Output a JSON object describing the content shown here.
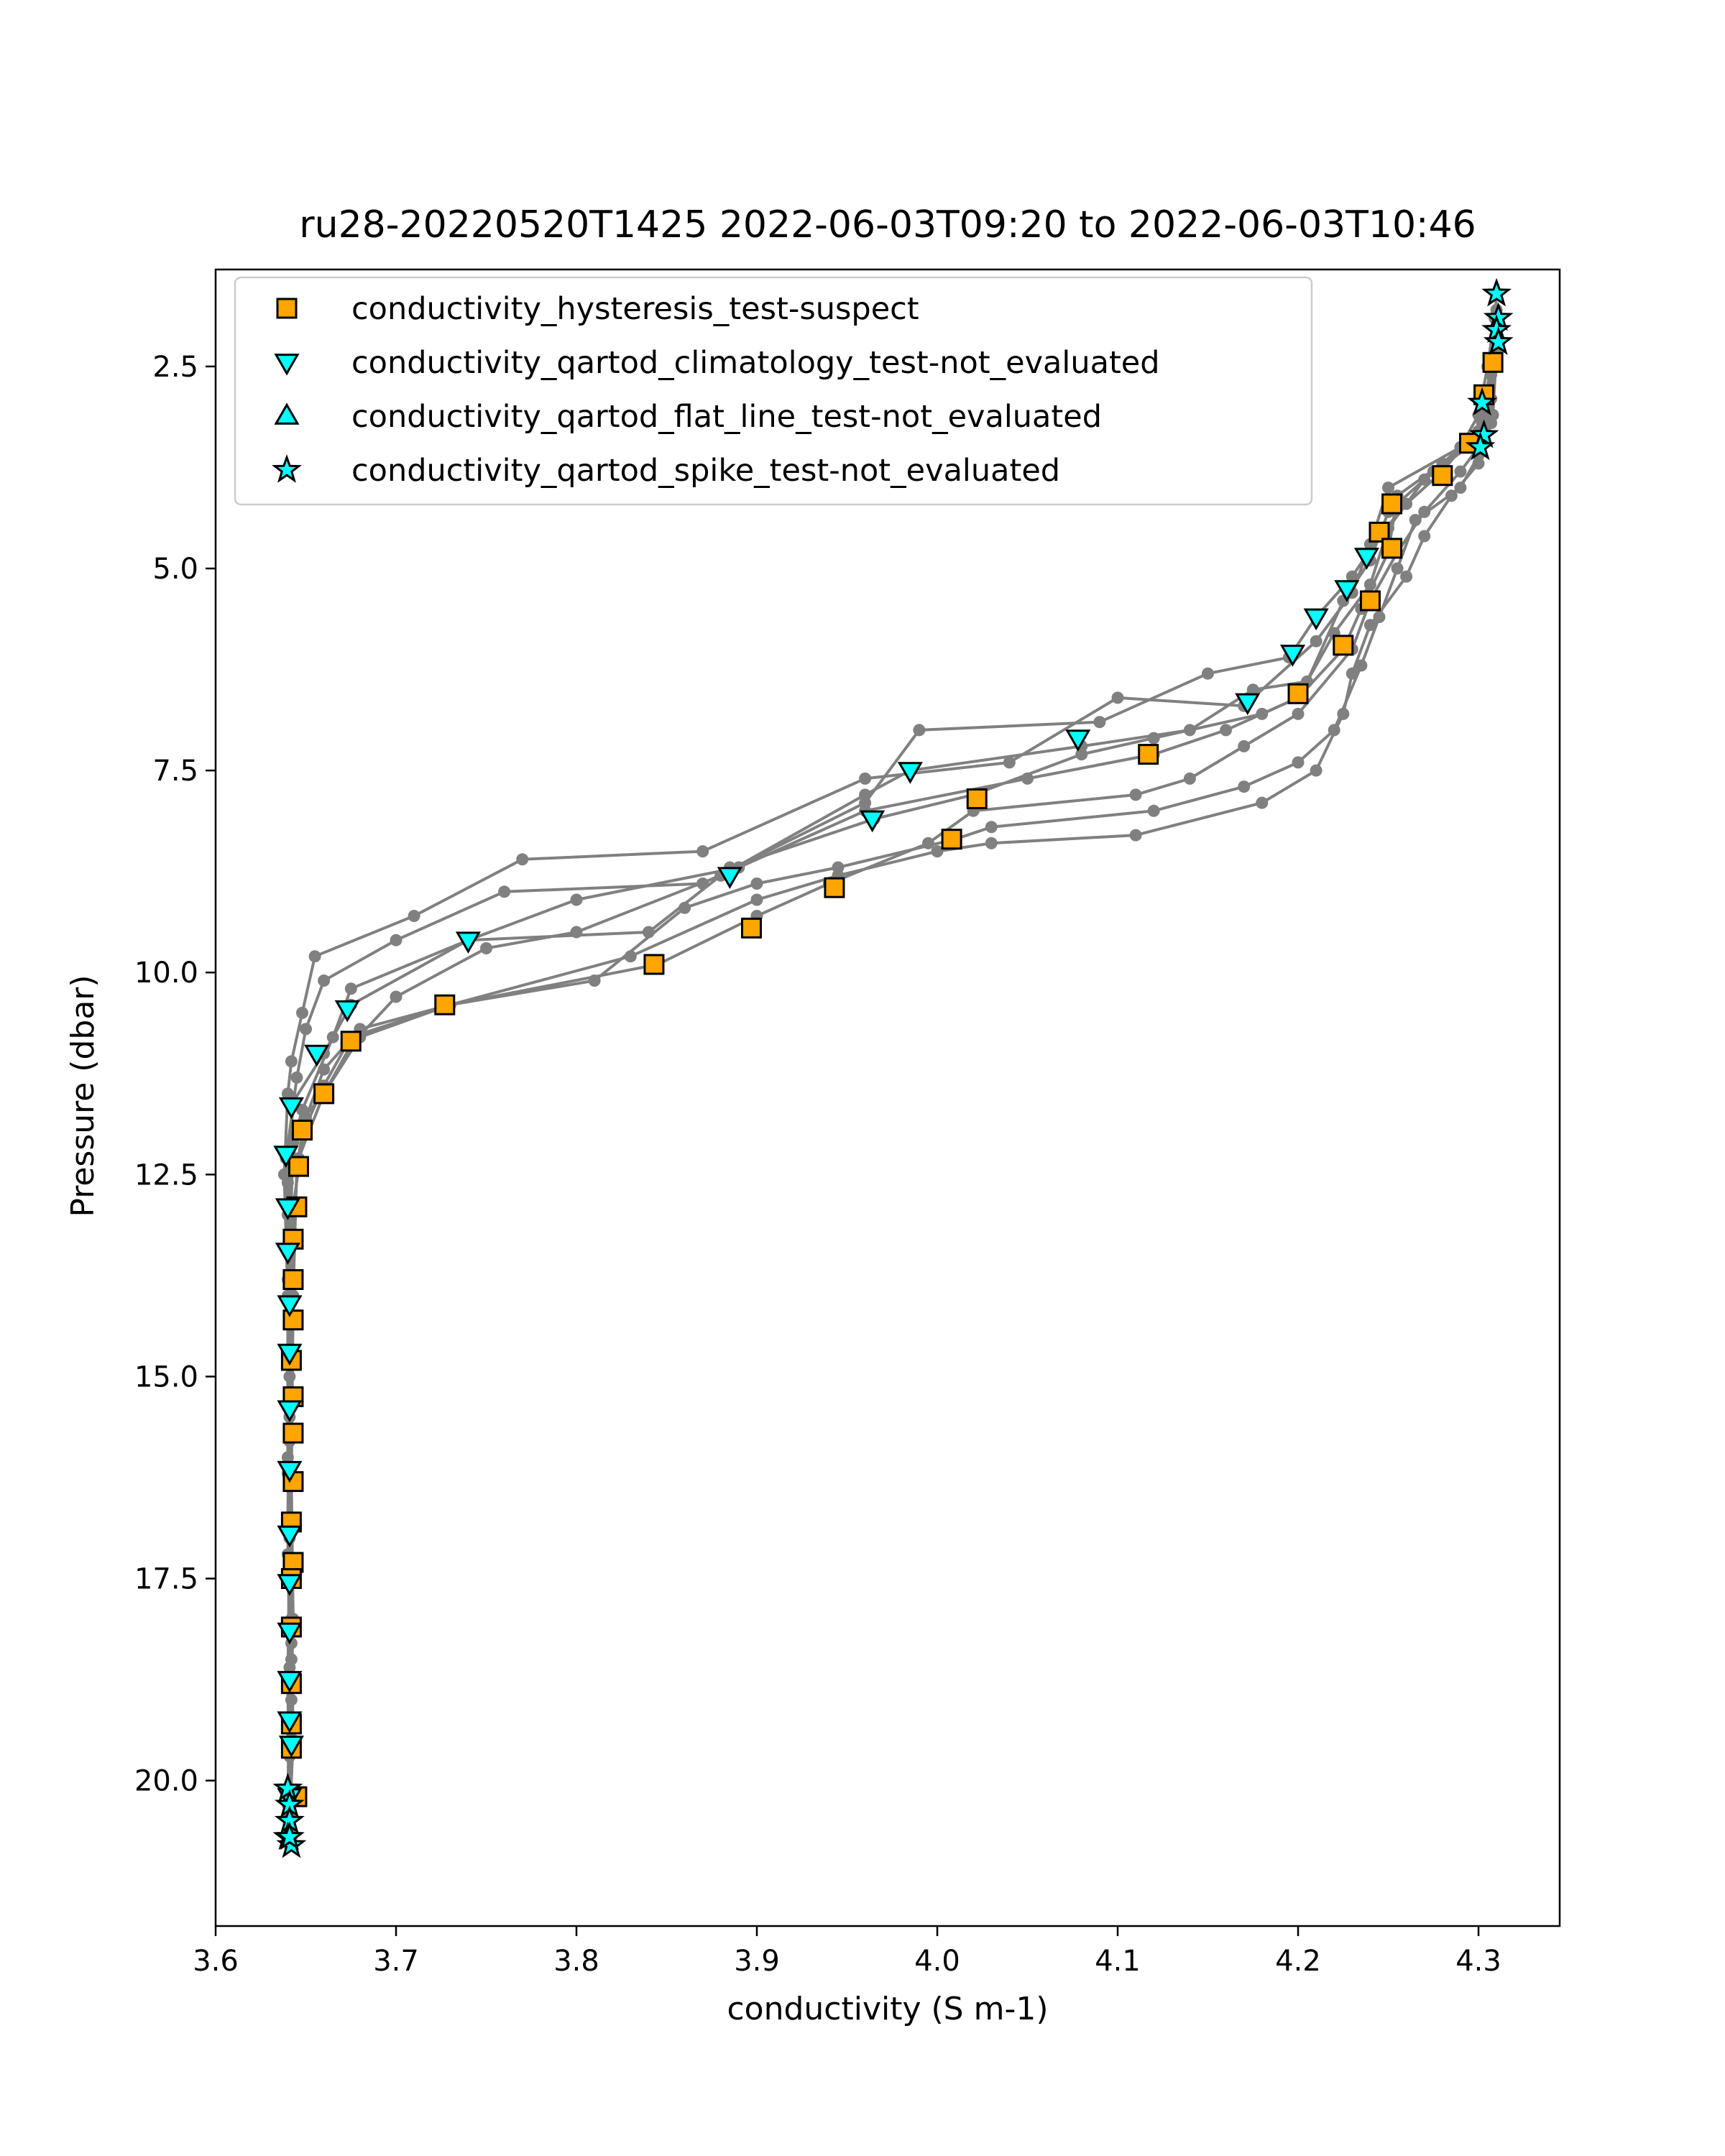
{
  "chart_data": {
    "type": "line",
    "title": "ru28-20220520T1425 2022-06-03T09:20 to 2022-06-03T10:46",
    "xlabel": "conductivity (S m-1)",
    "ylabel": "Pressure (dbar)",
    "xlim": [
      3.6,
      4.345
    ],
    "ylim": [
      21.8,
      1.3
    ],
    "y_inverted": true,
    "x_ticks": [
      3.6,
      3.7,
      3.8,
      3.9,
      4.0,
      4.1,
      4.2,
      4.3
    ],
    "x_tick_labels": [
      "3.6",
      "3.7",
      "3.8",
      "3.9",
      "4.0",
      "4.1",
      "4.2",
      "4.3"
    ],
    "y_ticks": [
      2.5,
      5.0,
      7.5,
      10.0,
      12.5,
      15.0,
      17.5,
      20.0
    ],
    "y_tick_labels": [
      "2.5",
      "5.0",
      "7.5",
      "10.0",
      "12.5",
      "15.0",
      "17.5",
      "20.0"
    ],
    "grid": false,
    "legend_position": "top-left",
    "colors": {
      "profile_line": "#808080",
      "orange": "#ffa500",
      "cyan": "#00ffff",
      "edge": "#000000"
    },
    "profiles": [
      {
        "points": [
          [
            4.31,
            1.6
          ],
          [
            4.308,
            2.4
          ],
          [
            4.3,
            3.3
          ],
          [
            4.29,
            3.5
          ],
          [
            4.25,
            4.0
          ],
          [
            4.24,
            4.7
          ],
          [
            4.23,
            5.3
          ],
          [
            4.21,
            5.9
          ],
          [
            4.17,
            6.7
          ],
          [
            4.1,
            6.6
          ],
          [
            4.04,
            7.4
          ],
          [
            3.96,
            7.6
          ],
          [
            3.87,
            8.5
          ],
          [
            3.77,
            8.6
          ],
          [
            3.71,
            9.3
          ],
          [
            3.655,
            9.8
          ],
          [
            3.648,
            10.5
          ],
          [
            3.642,
            11.1
          ],
          [
            3.64,
            11.5
          ],
          [
            3.638,
            12.5
          ],
          [
            3.64,
            14.0
          ],
          [
            3.64,
            16.0
          ],
          [
            3.642,
            18.0
          ],
          [
            3.643,
            19.5
          ],
          [
            3.641,
            20.5
          ]
        ]
      },
      {
        "points": [
          [
            4.31,
            1.8
          ],
          [
            4.307,
            2.6
          ],
          [
            4.302,
            3.2
          ],
          [
            4.28,
            3.8
          ],
          [
            4.26,
            4.2
          ],
          [
            4.245,
            4.6
          ],
          [
            4.23,
            5.1
          ],
          [
            4.21,
            5.6
          ],
          [
            4.195,
            6.1
          ],
          [
            4.15,
            6.3
          ],
          [
            4.09,
            6.9
          ],
          [
            3.99,
            7.0
          ],
          [
            3.96,
            7.9
          ],
          [
            3.87,
            8.9
          ],
          [
            3.76,
            9.0
          ],
          [
            3.7,
            9.6
          ],
          [
            3.66,
            10.1
          ],
          [
            3.65,
            10.7
          ],
          [
            3.645,
            11.3
          ],
          [
            3.639,
            12.3
          ],
          [
            3.64,
            13.8
          ],
          [
            3.641,
            15.5
          ],
          [
            3.64,
            17.2
          ],
          [
            3.642,
            19.0
          ],
          [
            3.64,
            20.3
          ]
        ]
      },
      {
        "points": [
          [
            4.309,
            1.9
          ],
          [
            4.305,
            2.5
          ],
          [
            4.3,
            3.1
          ],
          [
            4.29,
            3.5
          ],
          [
            4.275,
            3.8
          ],
          [
            4.25,
            4.3
          ],
          [
            4.24,
            4.9
          ],
          [
            4.225,
            5.4
          ],
          [
            4.205,
            6.4
          ],
          [
            4.175,
            6.5
          ],
          [
            4.14,
            7.0
          ],
          [
            4.08,
            7.2
          ],
          [
            3.985,
            7.5
          ],
          [
            3.96,
            7.8
          ],
          [
            3.88,
            8.8
          ],
          [
            3.84,
            9.5
          ],
          [
            3.74,
            9.6
          ],
          [
            3.675,
            10.4
          ],
          [
            3.66,
            11.0
          ],
          [
            3.643,
            11.6
          ],
          [
            3.64,
            12.6
          ],
          [
            3.641,
            14.3
          ],
          [
            3.64,
            16.2
          ],
          [
            3.642,
            18.3
          ],
          [
            3.64,
            20.1
          ]
        ]
      },
      {
        "points": [
          [
            4.31,
            2.0
          ],
          [
            4.306,
            2.8
          ],
          [
            4.3,
            3.4
          ],
          [
            4.27,
            3.9
          ],
          [
            4.25,
            4.5
          ],
          [
            4.24,
            5.2
          ],
          [
            4.22,
            5.8
          ],
          [
            4.2,
            6.6
          ],
          [
            4.16,
            7.0
          ],
          [
            4.12,
            7.3
          ],
          [
            4.05,
            7.6
          ],
          [
            3.96,
            8.0
          ],
          [
            3.89,
            8.7
          ],
          [
            3.8,
            9.1
          ],
          [
            3.74,
            9.6
          ],
          [
            3.675,
            10.2
          ],
          [
            3.665,
            10.8
          ],
          [
            3.648,
            11.7
          ],
          [
            3.643,
            12.1
          ],
          [
            3.641,
            13.5
          ],
          [
            3.642,
            15.2
          ],
          [
            3.641,
            17.0
          ],
          [
            3.64,
            18.8
          ],
          [
            3.641,
            20.4
          ]
        ]
      },
      {
        "points": [
          [
            4.31,
            2.1
          ],
          [
            4.307,
            2.9
          ],
          [
            4.303,
            3.3
          ],
          [
            4.28,
            3.7
          ],
          [
            4.255,
            4.1
          ],
          [
            4.25,
            4.8
          ],
          [
            4.235,
            5.5
          ],
          [
            4.225,
            6.0
          ],
          [
            4.2,
            6.6
          ],
          [
            4.18,
            6.8
          ],
          [
            4.12,
            7.1
          ],
          [
            4.08,
            7.3
          ],
          [
            4.02,
            7.8
          ],
          [
            3.965,
            8.1
          ],
          [
            3.885,
            8.7
          ],
          [
            3.88,
            8.8
          ],
          [
            3.8,
            9.5
          ],
          [
            3.75,
            9.7
          ],
          [
            3.7,
            10.3
          ],
          [
            3.675,
            10.9
          ],
          [
            3.66,
            11.5
          ],
          [
            3.645,
            11.9
          ],
          [
            3.64,
            13.0
          ],
          [
            3.641,
            14.8
          ],
          [
            3.64,
            16.8
          ],
          [
            3.641,
            18.6
          ],
          [
            3.642,
            20.2
          ]
        ]
      },
      {
        "points": [
          [
            4.31,
            2.2
          ],
          [
            4.305,
            3.0
          ],
          [
            4.3,
            3.5
          ],
          [
            4.29,
            3.8
          ],
          [
            4.27,
            4.3
          ],
          [
            4.255,
            4.8
          ],
          [
            4.24,
            5.4
          ],
          [
            4.23,
            6.0
          ],
          [
            4.2,
            6.8
          ],
          [
            4.17,
            7.2
          ],
          [
            4.14,
            7.6
          ],
          [
            4.11,
            7.8
          ],
          [
            4.02,
            8.0
          ],
          [
            3.995,
            8.4
          ],
          [
            3.94,
            8.9
          ],
          [
            3.9,
            9.3
          ],
          [
            3.845,
            9.9
          ],
          [
            3.73,
            10.4
          ],
          [
            3.675,
            10.8
          ],
          [
            3.66,
            11.4
          ],
          [
            3.648,
            12.0
          ],
          [
            3.645,
            12.4
          ],
          [
            3.643,
            14.0
          ],
          [
            3.642,
            16.3
          ],
          [
            3.643,
            18.0
          ],
          [
            3.641,
            19.7
          ],
          [
            3.642,
            20.7
          ]
        ]
      },
      {
        "points": [
          [
            4.31,
            2.3
          ],
          [
            4.308,
            3.1
          ],
          [
            4.3,
            3.6
          ],
          [
            4.29,
            4.0
          ],
          [
            4.265,
            4.4
          ],
          [
            4.255,
            5.0
          ],
          [
            4.245,
            5.6
          ],
          [
            4.235,
            6.2
          ],
          [
            4.22,
            7.0
          ],
          [
            4.2,
            7.4
          ],
          [
            4.17,
            7.7
          ],
          [
            4.12,
            8.0
          ],
          [
            4.03,
            8.2
          ],
          [
            4.01,
            8.35
          ],
          [
            3.945,
            8.7
          ],
          [
            3.9,
            8.9
          ],
          [
            3.86,
            9.2
          ],
          [
            3.81,
            10.1
          ],
          [
            3.73,
            10.4
          ],
          [
            3.68,
            10.7
          ],
          [
            3.66,
            11.2
          ],
          [
            3.65,
            11.8
          ],
          [
            3.643,
            12.9
          ],
          [
            3.641,
            15.0
          ],
          [
            3.642,
            17.5
          ],
          [
            3.64,
            19.3
          ],
          [
            3.641,
            20.8
          ]
        ]
      },
      {
        "points": [
          [
            4.31,
            2.4
          ],
          [
            4.307,
            3.2
          ],
          [
            4.3,
            3.7
          ],
          [
            4.285,
            4.1
          ],
          [
            4.27,
            4.6
          ],
          [
            4.26,
            5.1
          ],
          [
            4.24,
            5.7
          ],
          [
            4.23,
            6.3
          ],
          [
            4.225,
            6.8
          ],
          [
            4.21,
            7.5
          ],
          [
            4.18,
            7.9
          ],
          [
            4.11,
            8.3
          ],
          [
            4.03,
            8.4
          ],
          [
            4.0,
            8.5
          ],
          [
            3.945,
            8.8
          ],
          [
            3.9,
            9.1
          ],
          [
            3.83,
            9.8
          ],
          [
            3.73,
            10.4
          ],
          [
            3.68,
            10.8
          ],
          [
            3.66,
            11.5
          ],
          [
            3.646,
            12.3
          ],
          [
            3.642,
            13.3
          ],
          [
            3.641,
            15.8
          ],
          [
            3.642,
            18.5
          ],
          [
            3.641,
            20.6
          ]
        ]
      }
    ],
    "series": [
      {
        "name": "conductivity_hysteresis_test-suspect",
        "marker": "square",
        "color": "#ffa500",
        "points": [
          [
            4.308,
            2.45
          ],
          [
            4.303,
            2.85
          ],
          [
            4.295,
            3.45
          ],
          [
            4.28,
            3.85
          ],
          [
            4.252,
            4.2
          ],
          [
            4.245,
            4.55
          ],
          [
            4.252,
            4.75
          ],
          [
            4.24,
            5.4
          ],
          [
            4.225,
            5.95
          ],
          [
            4.2,
            6.55
          ],
          [
            4.117,
            7.3
          ],
          [
            4.022,
            7.85
          ],
          [
            4.008,
            8.35
          ],
          [
            3.943,
            8.95
          ],
          [
            3.897,
            9.45
          ],
          [
            3.843,
            9.9
          ],
          [
            3.727,
            10.4
          ],
          [
            3.675,
            10.85
          ],
          [
            3.66,
            11.5
          ],
          [
            3.648,
            11.95
          ],
          [
            3.646,
            12.4
          ],
          [
            3.645,
            12.9
          ],
          [
            3.643,
            13.3
          ],
          [
            3.643,
            13.8
          ],
          [
            3.643,
            14.3
          ],
          [
            3.642,
            14.8
          ],
          [
            3.643,
            15.25
          ],
          [
            3.643,
            15.7
          ],
          [
            3.643,
            16.3
          ],
          [
            3.642,
            16.8
          ],
          [
            3.643,
            17.3
          ],
          [
            3.642,
            17.5
          ],
          [
            3.642,
            18.1
          ],
          [
            3.642,
            18.8
          ],
          [
            3.642,
            19.3
          ],
          [
            3.642,
            19.6
          ],
          [
            3.645,
            20.2
          ]
        ]
      },
      {
        "name": "conductivity_qartod_climatology_test-not_evaluated",
        "marker": "triangle-down",
        "color": "#00ffff",
        "points": [
          [
            4.238,
            4.85
          ],
          [
            4.227,
            5.25
          ],
          [
            4.21,
            5.6
          ],
          [
            4.197,
            6.05
          ],
          [
            4.172,
            6.65
          ],
          [
            4.078,
            7.1
          ],
          [
            3.985,
            7.5
          ],
          [
            3.964,
            8.1
          ],
          [
            3.885,
            8.8
          ],
          [
            3.74,
            9.6
          ],
          [
            3.673,
            10.45
          ],
          [
            3.656,
            11.0
          ],
          [
            3.642,
            11.65
          ],
          [
            3.639,
            12.25
          ],
          [
            3.64,
            12.9
          ],
          [
            3.64,
            13.45
          ],
          [
            3.641,
            14.1
          ],
          [
            3.641,
            14.7
          ],
          [
            3.641,
            15.4
          ],
          [
            3.641,
            16.15
          ],
          [
            3.641,
            16.95
          ],
          [
            3.641,
            17.55
          ],
          [
            3.641,
            18.15
          ],
          [
            3.641,
            18.75
          ],
          [
            3.641,
            19.25
          ],
          [
            3.642,
            19.55
          ],
          [
            3.641,
            20.2
          ]
        ]
      },
      {
        "name": "conductivity_qartod_flat_line_test-not_evaluated",
        "marker": "triangle-up",
        "color": "#00ffff",
        "points": []
      },
      {
        "name": "conductivity_qartod_spike_test-not_evaluated",
        "marker": "star",
        "color": "#00ffff",
        "points": [
          [
            4.31,
            1.6
          ],
          [
            4.311,
            1.9
          ],
          [
            4.31,
            2.05
          ],
          [
            4.311,
            2.2
          ],
          [
            4.302,
            2.95
          ],
          [
            4.303,
            3.35
          ],
          [
            4.301,
            3.5
          ],
          [
            3.64,
            20.1
          ],
          [
            3.641,
            20.3
          ],
          [
            3.641,
            20.5
          ],
          [
            3.64,
            20.7
          ],
          [
            3.642,
            20.8
          ],
          [
            3.641,
            20.7
          ]
        ]
      }
    ]
  }
}
